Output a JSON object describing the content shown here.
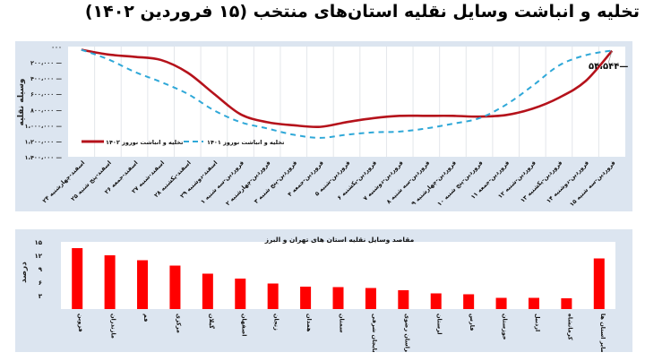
{
  "title": "تخلیه و انباشت وسایل نقلیه استان‌های منتخب (۱۵ فروردین ۱۴۰۲)",
  "chart_data": [
    {
      "type": "line",
      "title": "",
      "ylabel": "وسیله نقلیه",
      "xlabel": "",
      "y_tick_labels": [
        "۰۰۰",
        "۲۰۰،۰۰۰",
        "۴۰۰،۰۰۰",
        "۶۰۰،۰۰۰",
        "۸۰۰،۰۰۰",
        "۱،۰۰۰،۰۰۰",
        "۱،۲۰۰،۰۰۰",
        "۱،۴۰۰،۰۰۰"
      ],
      "ylim": [
        0,
        1400000
      ],
      "y_inverted": true,
      "grid": "vertical",
      "legend_position": "lower-left inside",
      "categories": [
        "۲۴ اسفند-چهارشنبه",
        "۲۵ اسفند-پنج شنبه",
        "۲۶ اسفند-جمعه",
        "۲۷ اسفند-شنبه",
        "۲۸ اسفند-یکشنبه",
        "۲۹ اسفند-دوشنبه",
        "۱ فروردین-سه شنبه",
        "۲ فروردین-چهارشنبه",
        "۳ فروردین-پنج شنبه",
        "۴ فروردین-جمعه",
        "۵ فروردین-شنبه",
        "۶ فروردین-یکشنبه",
        "۷ فروردین-دوشنبه",
        "۸ فروردین-سه شنبه",
        "۹ فروردین-چهارشنبه",
        "۱۰ فروردین-پنج شنبه",
        "۱۱ فروردین-جمعه",
        "۱۲ فروردین-شنبه",
        "۱۳ فروردین-یکشنبه",
        "۱۴ فروردین-دوشنبه",
        "۱۵ فروردین-سه شنبه"
      ],
      "series": [
        {
          "name": "تخلیه و انباشت نوروز ۱۴۰۲",
          "style": "solid",
          "color": "#b5121b",
          "values": [
            40000,
            100000,
            130000,
            170000,
            330000,
            600000,
            860000,
            960000,
            1000000,
            1020000,
            960000,
            910000,
            880000,
            880000,
            880000,
            890000,
            870000,
            790000,
            650000,
            440000,
            54544
          ]
        },
        {
          "name": "تخلیه و انباشت نوروز ۱۴۰۱",
          "style": "dashed",
          "color": "#2fa8d8",
          "values": [
            40000,
            160000,
            320000,
            450000,
            600000,
            810000,
            960000,
            1040000,
            1120000,
            1160000,
            1120000,
            1090000,
            1080000,
            1040000,
            980000,
            910000,
            740000,
            500000,
            240000,
            110000,
            50000
          ]
        }
      ],
      "annotations": [
        {
          "text": "۵۴،۵۴۴",
          "at": "۱۵ فروردین-سه شنبه"
        }
      ]
    },
    {
      "type": "bar",
      "title": "مقاصد وسایل نقلیه استان های تهران و البرز",
      "ylabel": "درصد",
      "xlabel": "",
      "ylim": [
        0,
        15
      ],
      "y_tick_labels": [
        "۳",
        "۶",
        "۹",
        "۱۲",
        "۱۵"
      ],
      "color": "#ff0000",
      "categories": [
        "قزوین",
        "مازندران",
        "قم",
        "مرکزی",
        "گیلان",
        "اصفهان",
        "زنجان",
        "همدان",
        "سمنان",
        "آذربایجان شرقی",
        "خراسان رضوی",
        "لرستان",
        "فارس",
        "خوزستان",
        "اردبیل",
        "کرمانشاه",
        "سایر استان ها"
      ],
      "values": [
        13.6,
        12.0,
        10.9,
        9.7,
        7.9,
        6.8,
        5.7,
        5.0,
        4.9,
        4.7,
        4.2,
        3.5,
        3.3,
        2.5,
        2.5,
        2.4,
        11.3
      ]
    }
  ]
}
